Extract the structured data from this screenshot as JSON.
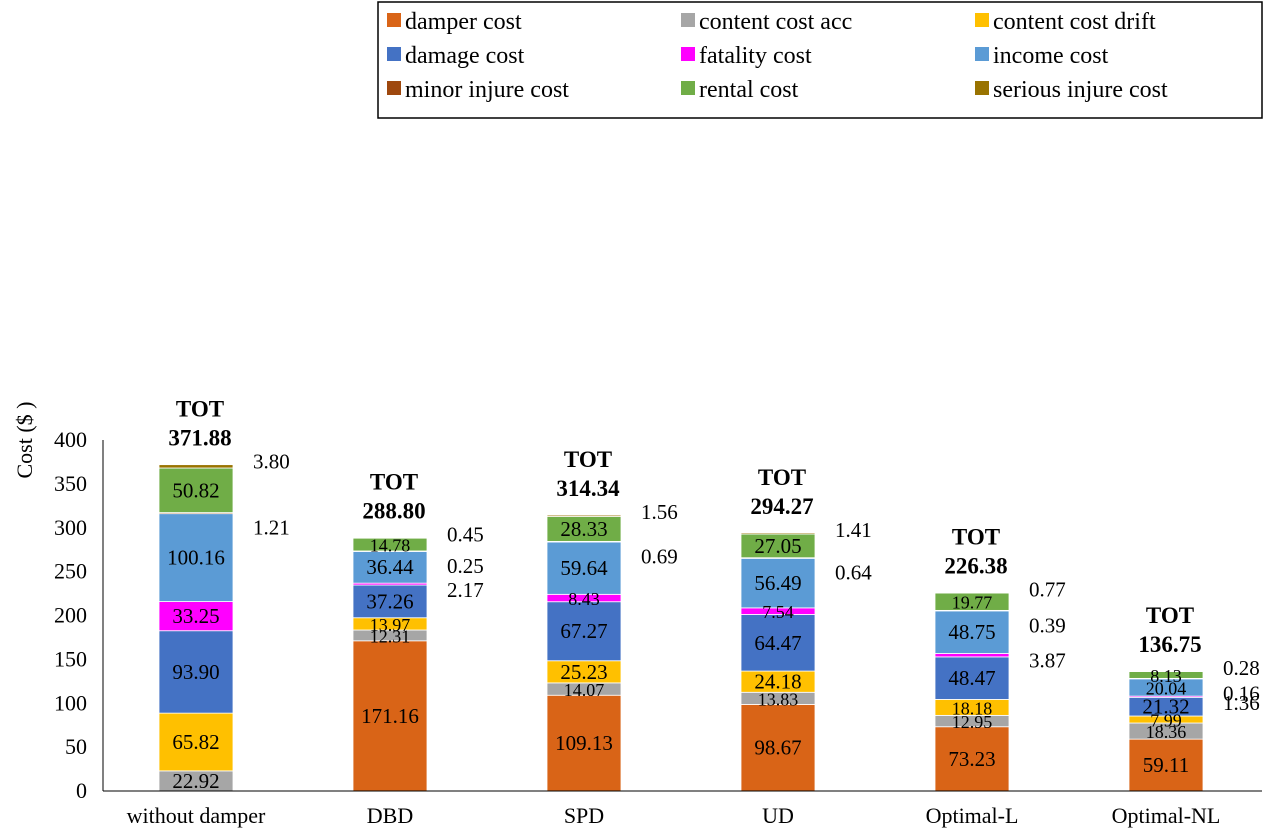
{
  "chart_data": {
    "type": "bar",
    "stacked": true,
    "categories": [
      "without damper",
      "DBD",
      "SPD",
      "UD",
      "Optimal-L",
      "Optimal-NL"
    ],
    "ylabel": "Cost ($ )",
    "ylim": [
      0,
      400
    ],
    "yticks": [
      0,
      50,
      100,
      150,
      200,
      250,
      300,
      350,
      400
    ],
    "grid": false,
    "legend_position": "top-right",
    "series": [
      {
        "name": "damper cost",
        "color": "#D96417",
        "values": [
          0,
          171.16,
          109.13,
          98.67,
          73.23,
          59.11
        ]
      },
      {
        "name": "content cost acc",
        "color": "#A6A6A6",
        "values": [
          22.92,
          12.31,
          14.07,
          13.83,
          12.95,
          18.36
        ]
      },
      {
        "name": "content cost drift",
        "color": "#FFC000",
        "values": [
          65.82,
          13.97,
          25.23,
          24.18,
          18.18,
          7.99
        ]
      },
      {
        "name": "damage cost",
        "color": "#4472C4",
        "values": [
          93.9,
          37.26,
          67.27,
          64.47,
          48.47,
          21.32
        ]
      },
      {
        "name": "fatality cost",
        "color": "#FF00FF",
        "values": [
          33.25,
          2.17,
          8.43,
          7.54,
          3.87,
          1.36
        ]
      },
      {
        "name": "income cost",
        "color": "#5B9BD5",
        "values": [
          100.16,
          36.44,
          59.64,
          56.49,
          48.75,
          20.04
        ]
      },
      {
        "name": "minor injure cost",
        "color": "#9E480E",
        "values": [
          1.21,
          0.25,
          0.69,
          0.64,
          0.39,
          0.16
        ]
      },
      {
        "name": "rental cost",
        "color": "#70AD47",
        "values": [
          50.82,
          14.78,
          28.33,
          27.05,
          19.77,
          8.13
        ]
      },
      {
        "name": "serious injure cost",
        "color": "#997300",
        "values": [
          3.8,
          0.45,
          1.56,
          1.41,
          0.77,
          0.28
        ]
      }
    ],
    "data_labels": [
      [
        null,
        "22.92",
        "65.82",
        "93.90",
        "33.25",
        "100.16",
        "1.21",
        "50.82",
        "3.80"
      ],
      [
        "171.16",
        "12.31",
        "13.97",
        "37.26",
        "2.17",
        "36.44",
        "0.25",
        "14.78",
        "0.45"
      ],
      [
        "109.13",
        "14.07",
        "25.23",
        "67.27",
        "8.43",
        "59.64",
        "0.69",
        "28.33",
        "1.56"
      ],
      [
        "98.67",
        "13.83",
        "24.18",
        "64.47",
        "7.54",
        "56.49",
        "0.64",
        "27.05",
        "1.41"
      ],
      [
        "73.23",
        "12.95",
        "18.18",
        "48.47",
        "3.87",
        "48.75",
        "0.39",
        "19.77",
        "0.77"
      ],
      [
        "59.11",
        "18.36",
        "7.99",
        "21.32",
        "1.36",
        "20.04",
        "0.16",
        "8.13",
        "0.28"
      ]
    ],
    "totals_prefix": "TOT",
    "totals": [
      "371.88",
      "288.80",
      "314.34",
      "294.27",
      "226.38",
      "136.75"
    ]
  }
}
